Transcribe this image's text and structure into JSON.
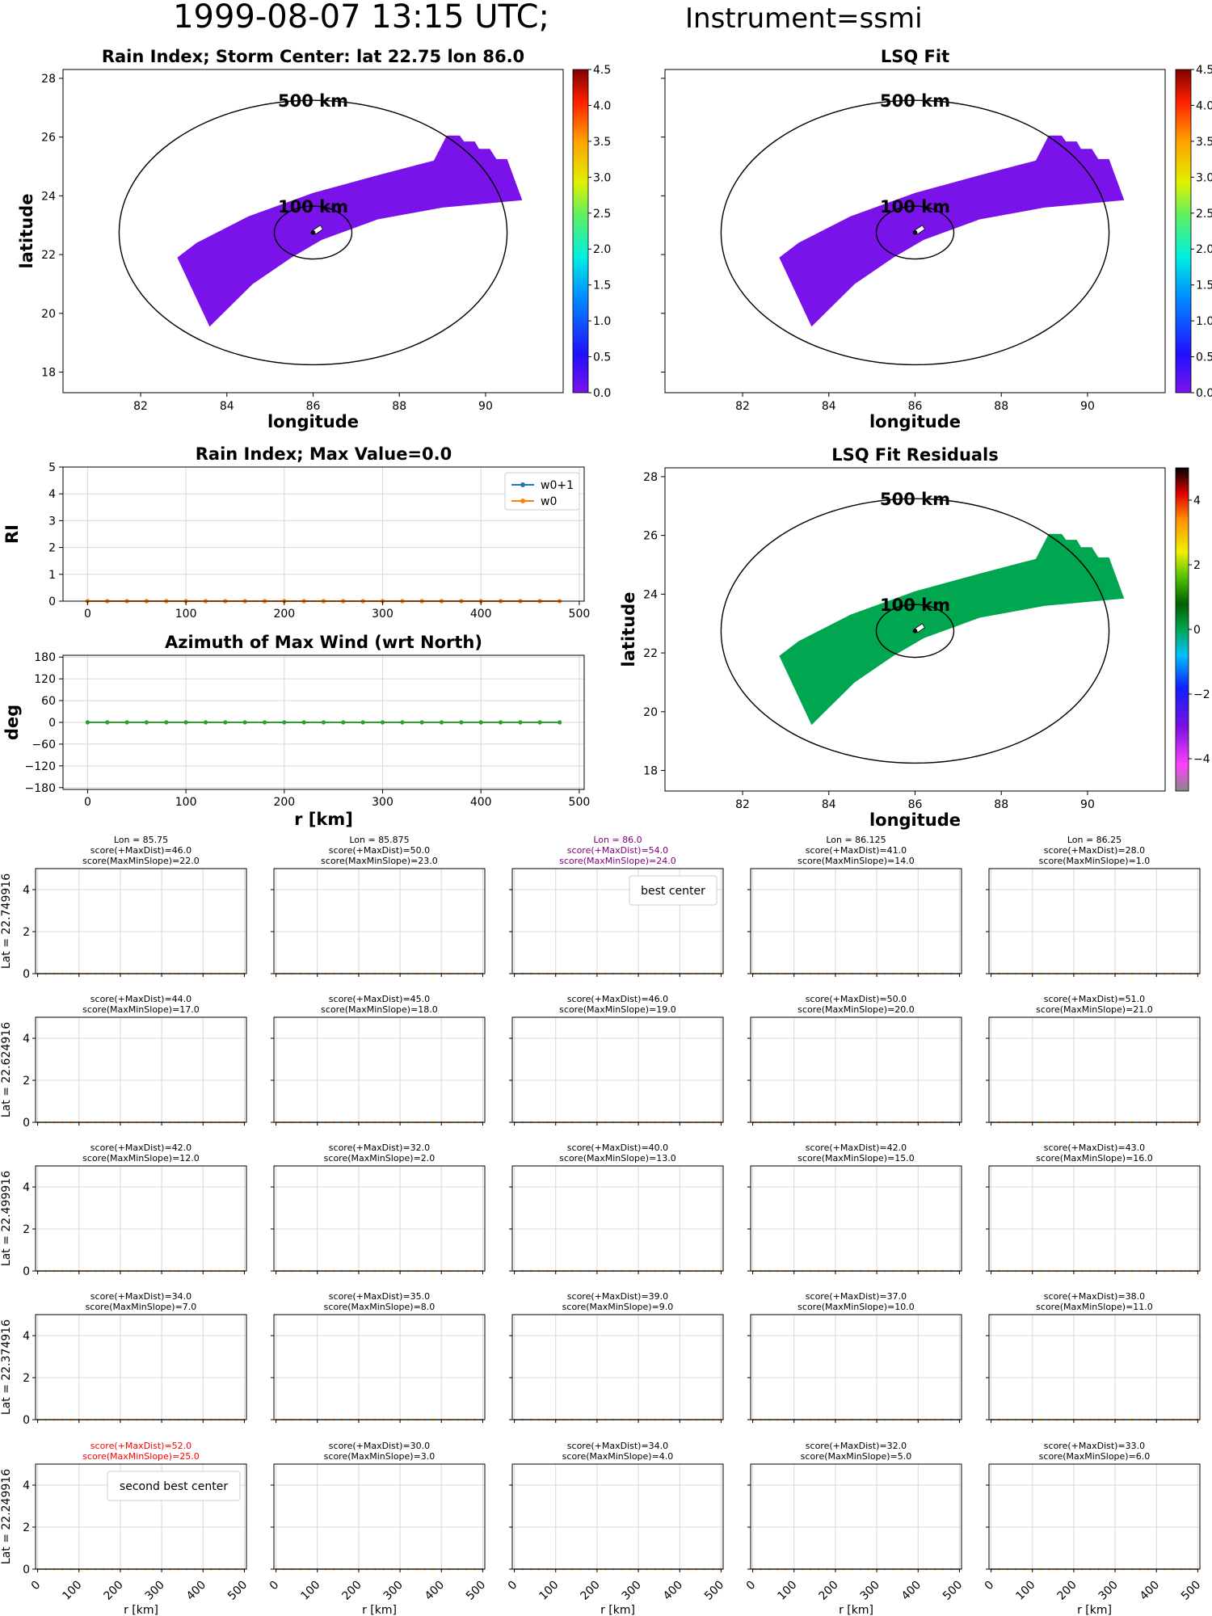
{
  "figure": {
    "title_main": "1999-08-07 13:15 UTC;",
    "title_inst": "Instrument=ssmi"
  },
  "chart_data": [
    {
      "id": "rain-index-map",
      "type": "heatmap",
      "title": "Rain Index; Storm Center: lat 22.75 lon 86.0",
      "xlabel": "longitude",
      "ylabel": "latitude",
      "xlim": [
        80.2,
        91.8
      ],
      "ylim": [
        17.3,
        28.3
      ],
      "xticks": [
        82,
        84,
        86,
        88,
        90
      ],
      "yticks": [
        18,
        20,
        22,
        24,
        26,
        28
      ],
      "center": {
        "lon": 86.0,
        "lat": 22.75
      },
      "rings": [
        {
          "label": "500 km",
          "radius_deg": 4.5
        },
        {
          "label": "100 km",
          "radius_deg": 0.9
        }
      ],
      "swath_value": 0.0,
      "swath_color": "#7a12ea",
      "colorbar": {
        "min": 0.0,
        "max": 4.5,
        "ticks": [
          "0.0",
          "0.5",
          "1.0",
          "1.5",
          "2.0",
          "2.5",
          "3.0",
          "3.5",
          "4.0",
          "4.5"
        ],
        "cmap": "jet-like"
      }
    },
    {
      "id": "lsq-fit-map",
      "type": "heatmap",
      "title": "LSQ Fit",
      "xlabel": "longitude",
      "ylabel": "",
      "xlim": [
        80.2,
        91.8
      ],
      "ylim": [
        17.3,
        28.3
      ],
      "xticks": [
        82,
        84,
        86,
        88,
        90
      ],
      "center": {
        "lon": 86.0,
        "lat": 22.75
      },
      "rings": [
        {
          "label": "500 km",
          "radius_deg": 4.5
        },
        {
          "label": "100 km",
          "radius_deg": 0.9
        }
      ],
      "swath_value": 0.0,
      "swath_color": "#7a12ea",
      "colorbar": {
        "min": 0.0,
        "max": 4.5,
        "ticks": [
          "0.0",
          "0.5",
          "1.0",
          "1.5",
          "2.0",
          "2.5",
          "3.0",
          "3.5",
          "4.0",
          "4.5"
        ],
        "cmap": "jet-like"
      }
    },
    {
      "id": "lsq-residuals-map",
      "type": "heatmap",
      "title": "LSQ Fit Residuals",
      "xlabel": "longitude",
      "ylabel": "latitude",
      "xlim": [
        80.2,
        91.8
      ],
      "ylim": [
        17.3,
        28.3
      ],
      "xticks": [
        82,
        84,
        86,
        88,
        90
      ],
      "yticks": [
        18,
        20,
        22,
        24,
        26,
        28
      ],
      "center": {
        "lon": 86.0,
        "lat": 22.75
      },
      "rings": [
        {
          "label": "500 km",
          "radius_deg": 4.5
        },
        {
          "label": "100 km",
          "radius_deg": 0.9
        }
      ],
      "swath_value": 0.0,
      "swath_color": "#00a650",
      "colorbar": {
        "min": -5,
        "max": 5,
        "ticks": [
          "4",
          "2",
          "0",
          "−2",
          "−4"
        ],
        "tick_values": [
          4,
          2,
          0,
          -2,
          -4
        ],
        "cmap": "diverging"
      }
    },
    {
      "id": "rain-index-profile",
      "type": "line",
      "title": "Rain Index; Max Value=0.0",
      "xlabel": "",
      "ylabel": "RI",
      "xlim": [
        -25,
        505
      ],
      "ylim": [
        0,
        5
      ],
      "xticks": [
        0,
        100,
        200,
        300,
        400,
        500
      ],
      "yticks": [
        0,
        1,
        2,
        3,
        4,
        5
      ],
      "legend": "upper-right",
      "x": [
        0,
        20,
        40,
        60,
        80,
        100,
        120,
        140,
        160,
        180,
        200,
        220,
        240,
        260,
        280,
        300,
        320,
        340,
        360,
        380,
        400,
        420,
        440,
        460,
        480
      ],
      "series": [
        {
          "name": "w0+1",
          "color": "#1f77b4",
          "marker": "star",
          "values": [
            0,
            0,
            0,
            0,
            0,
            0,
            0,
            0,
            0,
            0,
            0,
            0,
            0,
            0,
            0,
            0,
            0,
            0,
            0,
            0,
            0,
            0,
            0,
            0,
            0
          ]
        },
        {
          "name": "w0",
          "color": "#ff7f0e",
          "marker": "dot",
          "values": [
            0,
            0,
            0,
            0,
            0,
            0,
            0,
            0,
            0,
            0,
            0,
            0,
            0,
            0,
            0,
            0,
            0,
            0,
            0,
            0,
            0,
            0,
            0,
            0,
            0
          ]
        }
      ]
    },
    {
      "id": "azimuth-max-wind",
      "type": "line",
      "title": "Azimuth of Max Wind (wrt North)",
      "xlabel": "r [km]",
      "ylabel": "deg",
      "xlim": [
        -25,
        505
      ],
      "ylim": [
        -185,
        185
      ],
      "xticks": [
        0,
        100,
        200,
        300,
        400,
        500
      ],
      "yticks": [
        180,
        120,
        60,
        0,
        -60,
        -120,
        -180
      ],
      "ytick_labels": [
        "180",
        "120",
        "60",
        "0",
        "−60",
        "−120",
        "−180"
      ],
      "x": [
        0,
        20,
        40,
        60,
        80,
        100,
        120,
        140,
        160,
        180,
        200,
        220,
        240,
        260,
        280,
        300,
        320,
        340,
        360,
        380,
        400,
        420,
        440,
        460,
        480
      ],
      "series": [
        {
          "color": "#2ca02c",
          "values": [
            0,
            0,
            0,
            0,
            0,
            0,
            0,
            0,
            0,
            0,
            0,
            0,
            0,
            0,
            0,
            0,
            0,
            0,
            0,
            0,
            0,
            0,
            0,
            0,
            0
          ]
        }
      ]
    }
  ],
  "grid": {
    "lons": [
      "Lon = 85.75",
      "Lon = 85.875",
      "Lon = 86.0",
      "Lon = 86.125",
      "Lon = 86.25"
    ],
    "lats": [
      "Lat = 22.749916",
      "Lat = 22.624916",
      "Lat = 22.499916",
      "Lat = 22.374916",
      "Lat = 22.249916"
    ],
    "xlabel": "r [km]",
    "xlim": [
      -5,
      505
    ],
    "ylim": [
      0,
      5
    ],
    "xticks": [
      0,
      100,
      200,
      300,
      400,
      500
    ],
    "yticks": [
      0,
      2,
      4
    ],
    "r_values": [
      0,
      20,
      40,
      60,
      80,
      100,
      120,
      140,
      160,
      180,
      200,
      220,
      240,
      260,
      280,
      300,
      320,
      340,
      360,
      380,
      400,
      420,
      440,
      460,
      480,
      500
    ],
    "rows": [
      [
        {
          "s1": "score(+MaxDist)=46.0",
          "s2": "score(MaxMinSlope)=22.0"
        },
        {
          "s1": "score(+MaxDist)=50.0",
          "s2": "score(MaxMinSlope)=23.0"
        },
        {
          "s1": "score(+MaxDist)=54.0",
          "s2": "score(MaxMinSlope)=24.0",
          "color": "#800080",
          "legend": "best center"
        },
        {
          "s1": "score(+MaxDist)=41.0",
          "s2": "score(MaxMinSlope)=14.0"
        },
        {
          "s1": "score(+MaxDist)=28.0",
          "s2": "score(MaxMinSlope)=1.0"
        }
      ],
      [
        {
          "s1": "score(+MaxDist)=44.0",
          "s2": "score(MaxMinSlope)=17.0"
        },
        {
          "s1": "score(+MaxDist)=45.0",
          "s2": "score(MaxMinSlope)=18.0"
        },
        {
          "s1": "score(+MaxDist)=46.0",
          "s2": "score(MaxMinSlope)=19.0"
        },
        {
          "s1": "score(+MaxDist)=50.0",
          "s2": "score(MaxMinSlope)=20.0"
        },
        {
          "s1": "score(+MaxDist)=51.0",
          "s2": "score(MaxMinSlope)=21.0"
        }
      ],
      [
        {
          "s1": "score(+MaxDist)=42.0",
          "s2": "score(MaxMinSlope)=12.0"
        },
        {
          "s1": "score(+MaxDist)=32.0",
          "s2": "score(MaxMinSlope)=2.0"
        },
        {
          "s1": "score(+MaxDist)=40.0",
          "s2": "score(MaxMinSlope)=13.0"
        },
        {
          "s1": "score(+MaxDist)=42.0",
          "s2": "score(MaxMinSlope)=15.0"
        },
        {
          "s1": "score(+MaxDist)=43.0",
          "s2": "score(MaxMinSlope)=16.0"
        }
      ],
      [
        {
          "s1": "score(+MaxDist)=34.0",
          "s2": "score(MaxMinSlope)=7.0"
        },
        {
          "s1": "score(+MaxDist)=35.0",
          "s2": "score(MaxMinSlope)=8.0"
        },
        {
          "s1": "score(+MaxDist)=39.0",
          "s2": "score(MaxMinSlope)=9.0"
        },
        {
          "s1": "score(+MaxDist)=37.0",
          "s2": "score(MaxMinSlope)=10.0"
        },
        {
          "s1": "score(+MaxDist)=38.0",
          "s2": "score(MaxMinSlope)=11.0"
        }
      ],
      [
        {
          "s1": "score(+MaxDist)=52.0",
          "s2": "score(MaxMinSlope)=25.0",
          "color": "#ff0000",
          "legend": "second best center"
        },
        {
          "s1": "score(+MaxDist)=30.0",
          "s2": "score(MaxMinSlope)=3.0"
        },
        {
          "s1": "score(+MaxDist)=34.0",
          "s2": "score(MaxMinSlope)=4.0"
        },
        {
          "s1": "score(+MaxDist)=32.0",
          "s2": "score(MaxMinSlope)=5.0"
        },
        {
          "s1": "score(+MaxDist)=33.0",
          "s2": "score(MaxMinSlope)=6.0"
        }
      ]
    ]
  }
}
